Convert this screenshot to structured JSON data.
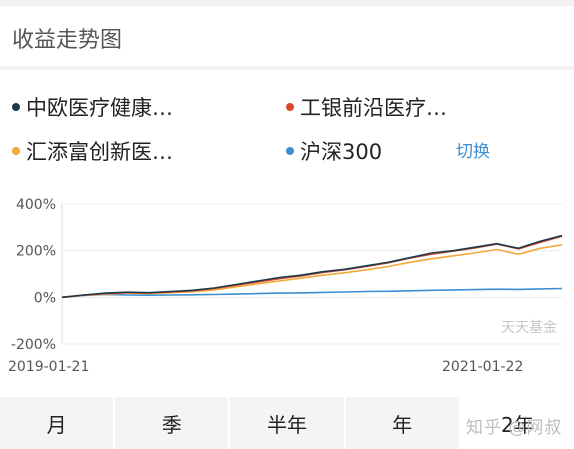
{
  "header": {
    "title": "收益走势图"
  },
  "legend": {
    "items": [
      {
        "label": "中欧医疗健康…",
        "color": "#1d3a4a"
      },
      {
        "label": "工银前沿医疗…",
        "color": "#d9482b"
      },
      {
        "label": "汇添富创新医…",
        "color": "#f2a93b"
      },
      {
        "label": "沪深300",
        "color": "#3d8fd1"
      }
    ],
    "switch_label": "切换",
    "switch_color": "#3d8fd1"
  },
  "chart_data": {
    "type": "line",
    "yticks": [
      "400%",
      "200%",
      "0%",
      "-200%"
    ],
    "ylim": [
      -200,
      400
    ],
    "x_start_label": "2019-01-21",
    "x_end_label": "2021-01-22",
    "watermark": "天天基金",
    "series": [
      {
        "name": "中欧医疗健康…",
        "color": "#1d3a4a",
        "values": [
          0,
          10,
          18,
          22,
          20,
          25,
          30,
          40,
          55,
          70,
          85,
          95,
          110,
          120,
          135,
          150,
          170,
          190,
          200,
          215,
          230,
          210,
          240,
          265
        ]
      },
      {
        "name": "工银前沿医疗…",
        "color": "#d9482b",
        "values": [
          0,
          9,
          16,
          20,
          19,
          23,
          28,
          38,
          52,
          66,
          80,
          92,
          107,
          118,
          132,
          148,
          168,
          185,
          198,
          212,
          228,
          208,
          236,
          262
        ]
      },
      {
        "name": "汇添富创新医…",
        "color": "#f2a93b",
        "values": [
          0,
          8,
          14,
          18,
          17,
          20,
          24,
          32,
          45,
          58,
          70,
          82,
          95,
          105,
          118,
          132,
          150,
          165,
          178,
          190,
          205,
          185,
          210,
          225
        ]
      },
      {
        "name": "沪深300",
        "color": "#3d8fd1",
        "values": [
          0,
          8,
          12,
          10,
          9,
          10,
          11,
          12,
          14,
          16,
          18,
          19,
          21,
          23,
          25,
          26,
          28,
          30,
          32,
          33,
          35,
          34,
          36,
          38
        ]
      }
    ]
  },
  "tabs": [
    {
      "label": "月"
    },
    {
      "label": "季"
    },
    {
      "label": "半年"
    },
    {
      "label": "年"
    },
    {
      "label": "2年"
    }
  ],
  "watermark_site": "知乎 @网叔"
}
